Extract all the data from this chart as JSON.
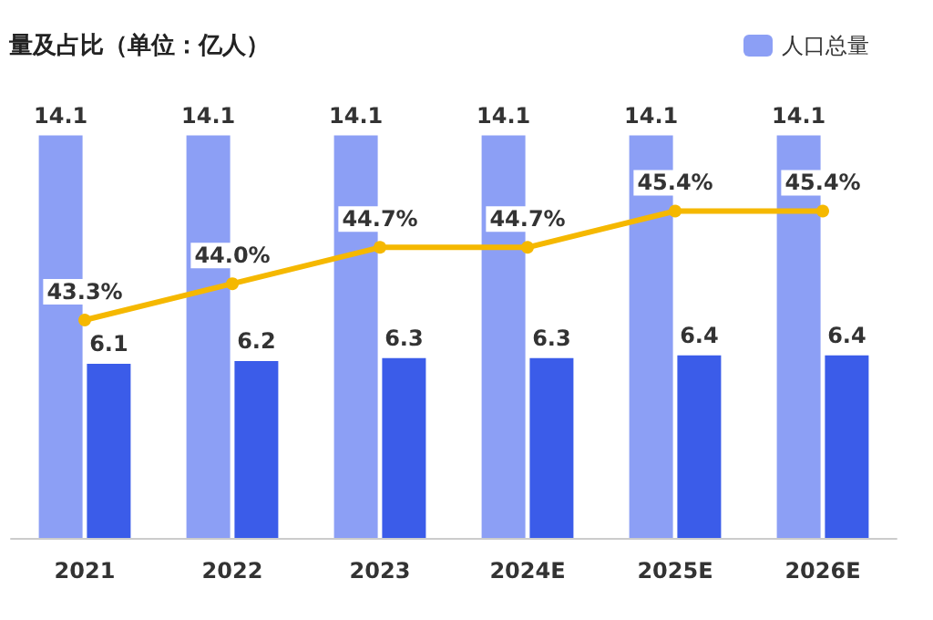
{
  "chart_data": {
    "type": "bar",
    "title": "量及占比（单位：亿人）",
    "categories": [
      "2021",
      "2022",
      "2023",
      "2024E",
      "2025E",
      "2026E"
    ],
    "series": [
      {
        "name": "人口总量",
        "color": "#8c9ff5",
        "values": [
          14.1,
          14.1,
          14.1,
          14.1,
          14.1,
          14.1
        ],
        "value_labels": [
          "14.1",
          "14.1",
          "14.1",
          "14.1",
          "14.1",
          "14.1"
        ]
      },
      {
        "color": "#3b5ce9",
        "values": [
          6.1,
          6.2,
          6.3,
          6.3,
          6.4,
          6.4
        ],
        "value_labels": [
          "6.1",
          "6.2",
          "6.3",
          "6.3",
          "6.4",
          "6.4"
        ]
      },
      {
        "type": "line",
        "axis": "y2",
        "color": "#f5b800",
        "values": [
          43.3,
          44.0,
          44.7,
          44.7,
          45.4,
          45.4
        ],
        "value_labels": [
          "43.3%",
          "44.0%",
          "44.7%",
          "44.7%",
          "45.4%",
          "45.4%"
        ]
      }
    ],
    "tick_labels": "x",
    "grid": false,
    "legend": "top right",
    "marker": "circle",
    "line_style": "solid"
  }
}
